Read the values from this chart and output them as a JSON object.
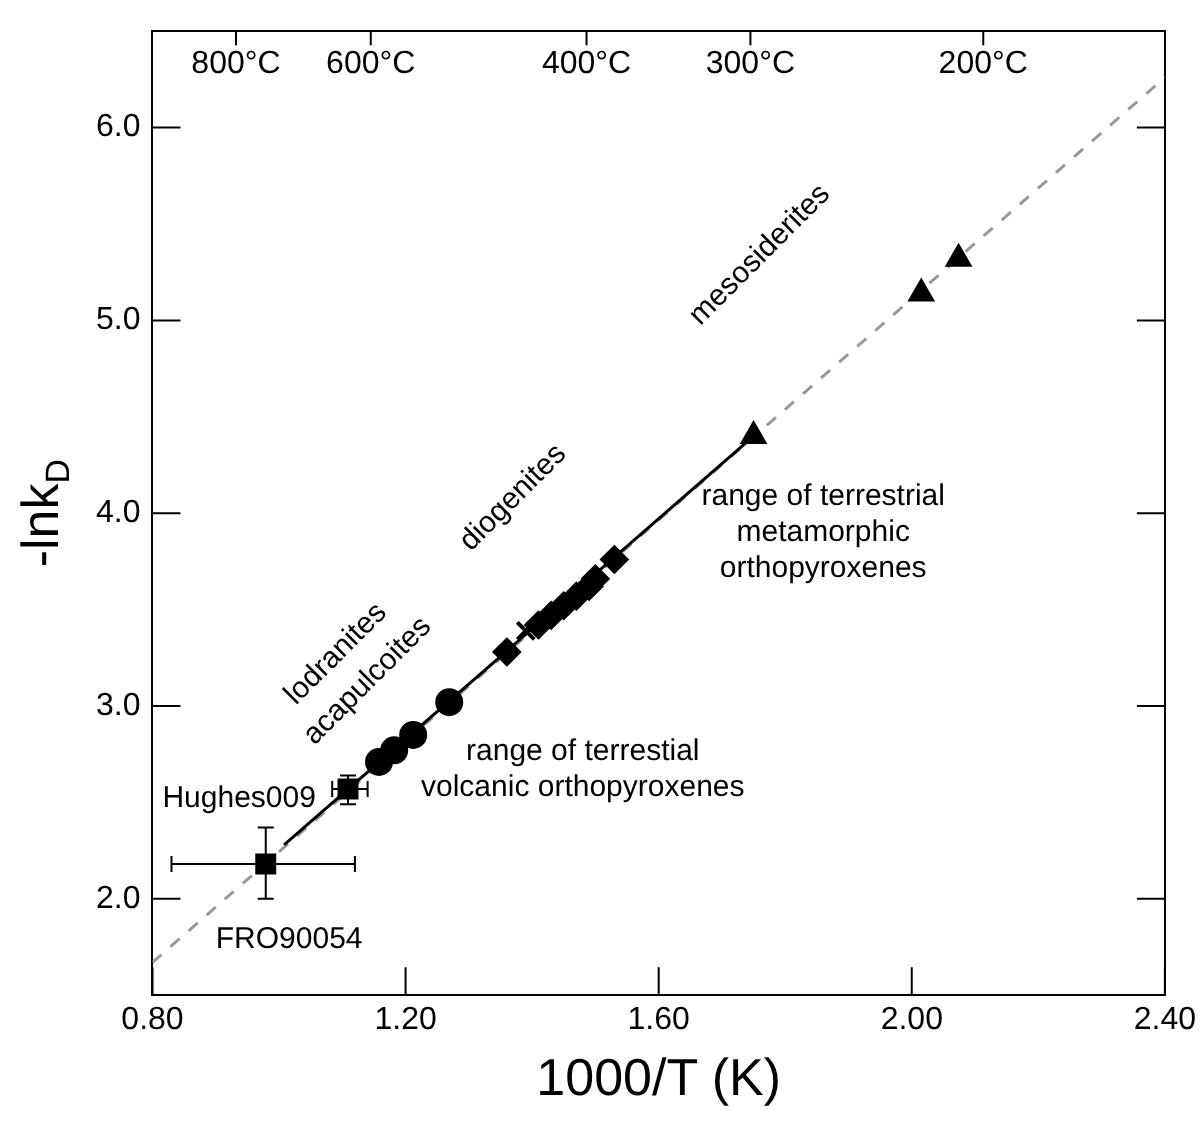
{
  "chart_data": {
    "type": "scatter",
    "xlabel": "1000/T (K)",
    "ylabel": "-lnk$_{D}$",
    "xlim": [
      0.8,
      2.4
    ],
    "xticks": [
      {
        "value": 0.8,
        "label": "0.80"
      },
      {
        "value": 1.2,
        "label": "1.20"
      },
      {
        "value": 1.6,
        "label": "1.60"
      },
      {
        "value": 2.0,
        "label": "2.00"
      },
      {
        "value": 2.4,
        "label": "2.40"
      }
    ],
    "ylim": [
      1.5,
      6.5
    ],
    "yticks": [
      {
        "value": 2,
        "label": "2.0"
      },
      {
        "value": 3,
        "label": "3.0"
      },
      {
        "value": 4,
        "label": "4.0"
      },
      {
        "value": 5,
        "label": "5.0"
      },
      {
        "value": 6,
        "label": "6.0"
      }
    ],
    "series": [
      {
        "type": "line",
        "color": "#999999",
        "line_style": "dashed",
        "marker": "none",
        "x": [
          0.8,
          2.4
        ],
        "values": [
          1.67,
          6.26
        ]
      },
      {
        "type": "line",
        "color": "#000000",
        "line_style": "solid",
        "marker": "none",
        "x": [
          1.008,
          1.75
        ],
        "values": [
          2.28,
          4.4
        ]
      },
      {
        "color": "#000000",
        "marker": "square",
        "x": [
          0.979,
          1.109
        ],
        "values": [
          2.18,
          2.57
        ],
        "errors": [
          [
            2.0,
            2.37
          ],
          [
            2.49,
            2.64
          ]
        ],
        "xerrors": [
          [
            0.83,
            1.12
          ],
          [
            1.084,
            1.14
          ]
        ]
      },
      {
        "color": "#000000",
        "marker": "circle",
        "x": [
          1.158,
          1.182,
          1.212,
          1.269
        ],
        "values": [
          2.71,
          2.77,
          2.85,
          3.02
        ]
      },
      {
        "color": "#000000",
        "marker": "diamond",
        "x": [
          1.36,
          1.41,
          1.43,
          1.45,
          1.47,
          1.49,
          1.5,
          1.53
        ],
        "values": [
          3.28,
          3.42,
          3.47,
          3.52,
          3.57,
          3.62,
          3.66,
          3.76
        ]
      },
      {
        "color": "#000000",
        "marker": "cross",
        "x": [
          1.39
        ],
        "values": [
          3.39
        ]
      },
      {
        "color": "#000000",
        "marker": "triangle",
        "x": [
          1.75,
          2.015,
          2.074
        ],
        "values": [
          4.4,
          5.14,
          5.32
        ]
      }
    ],
    "annotations": [
      "Hughes009",
      "FRO90054",
      "range of terrestial\nvolcanic orthopyroxenes",
      "range of terrestrial\nmetamorphic\northopyroxenes",
      "lodranites",
      "acapulcoites",
      "diogenites",
      "mesosiderites",
      "800°C",
      "600°C",
      "400°C",
      "300°C",
      "200°C"
    ]
  }
}
